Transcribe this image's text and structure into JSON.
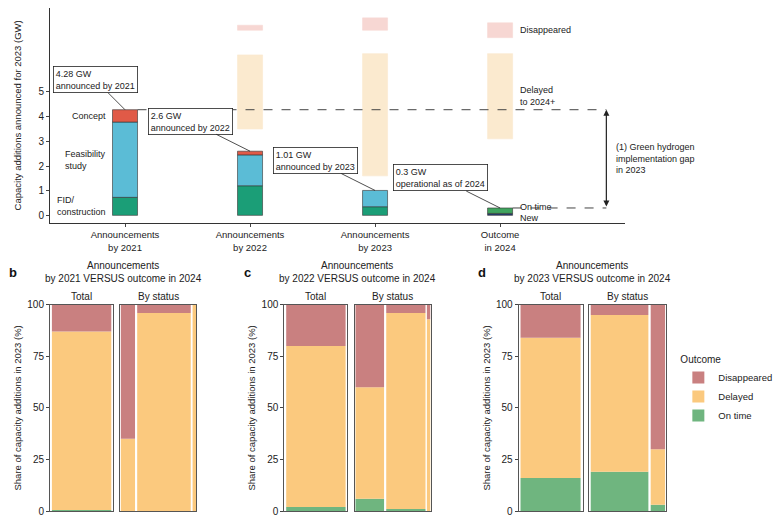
{
  "chart_data": [
    {
      "type": "bar",
      "stacked": true,
      "ylabel": "Capacity additions announced for 2023 (GW)",
      "categories": [
        "Announcements by 2021",
        "Announcements by 2022",
        "Announcements by 2023",
        "Outcome in 2024"
      ],
      "ylim": [
        -0.3,
        8.4
      ],
      "yticks": [
        0,
        1,
        2,
        3,
        4,
        5
      ],
      "series": [
        {
          "name": "New",
          "color": "#253b6e",
          "values": [
            null,
            null,
            null,
            0.08
          ]
        },
        {
          "name": "FID/ construction",
          "color": "#1b9e77",
          "values": [
            0.73,
            1.2,
            0.35,
            null
          ]
        },
        {
          "name": "On time",
          "color": "#3fa45e",
          "values": [
            null,
            null,
            null,
            0.22
          ]
        },
        {
          "name": "Feasibility study",
          "color": "#5bbcd6",
          "values": [
            3.05,
            1.25,
            0.66,
            null
          ]
        },
        {
          "name": "Concept",
          "color": "#e05a47",
          "values": [
            0.5,
            0.15,
            null,
            null
          ]
        },
        {
          "name": "Delayed to 2024+",
          "color": "#f9d9a8",
          "values": [
            null,
            3.0,
            4.95,
            3.45
          ],
          "base": [
            null,
            3.5,
            1.6,
            3.1
          ]
        },
        {
          "name": "Disappeared",
          "color": "#f2b8b0",
          "values": [
            null,
            0.2,
            0.5,
            0.6
          ],
          "base": [
            null,
            7.5,
            7.5,
            7.2
          ]
        }
      ],
      "callouts": [
        [
          "4.28 GW",
          "announced by 2021"
        ],
        [
          "2.6 GW",
          "announced by 2022"
        ],
        [
          "1.01 GW",
          "announced by 2023"
        ],
        [
          "0.3 GW",
          "operational as of 2024"
        ]
      ],
      "gap": {
        "from": 0.3,
        "to": 4.28,
        "lines": [
          "(1) Green hydrogen",
          "implementation gap",
          "in 2023"
        ]
      }
    },
    {
      "type": "bar",
      "stacked": true,
      "label": "b",
      "title_lines": [
        "Announcements",
        "by 2021 VERSUS outcome in 2024"
      ],
      "ylabel": "Share of capacity additions in 2023 (%)",
      "ylim": [
        0,
        100
      ],
      "yticks": [
        0,
        25,
        50,
        75,
        100
      ],
      "tick_labels": "y",
      "groups": [
        {
          "title": "Total",
          "widths": [
            100
          ],
          "series": [
            {
              "name": "On time",
              "color": "#6fb57f",
              "values": [
                0.5
              ]
            },
            {
              "name": "Delayed",
              "color": "#fbc97e",
              "values": [
                86.5
              ]
            },
            {
              "name": "Disappeared",
              "color": "#c98080",
              "values": [
                13
              ]
            }
          ]
        },
        {
          "title": "By status",
          "widths": [
            20,
            75,
            5
          ],
          "series": [
            {
              "name": "On time",
              "color": "#6fb57f",
              "values": [
                0,
                0,
                0
              ]
            },
            {
              "name": "Delayed",
              "color": "#fbc97e",
              "values": [
                35,
                96,
                100
              ]
            },
            {
              "name": "Disappeared",
              "color": "#c98080",
              "values": [
                65,
                4,
                0
              ]
            }
          ]
        }
      ]
    },
    {
      "type": "bar",
      "stacked": true,
      "label": "c",
      "title_lines": [
        "Announcements",
        "by 2022 VERSUS outcome in 2024"
      ],
      "ylabel": "Share of capacity additions in 2023 (%)",
      "ylim": [
        0,
        100
      ],
      "yticks": [
        0,
        25,
        50,
        75,
        100
      ],
      "tick_labels": "y",
      "groups": [
        {
          "title": "Total",
          "widths": [
            100
          ],
          "series": [
            {
              "name": "On time",
              "color": "#6fb57f",
              "values": [
                2
              ]
            },
            {
              "name": "Delayed",
              "color": "#fbc97e",
              "values": [
                78
              ]
            },
            {
              "name": "Disappeared",
              "color": "#c98080",
              "values": [
                20
              ]
            }
          ]
        },
        {
          "title": "By status",
          "widths": [
            40,
            55,
            5
          ],
          "series": [
            {
              "name": "On time",
              "color": "#6fb57f",
              "values": [
                6,
                1,
                0
              ]
            },
            {
              "name": "Delayed",
              "color": "#fbc97e",
              "values": [
                54,
                95,
                93
              ]
            },
            {
              "name": "Disappeared",
              "color": "#c98080",
              "values": [
                40,
                4,
                7
              ]
            }
          ]
        }
      ]
    },
    {
      "type": "bar",
      "stacked": true,
      "label": "d",
      "title_lines": [
        "Announcements",
        "by 2023 VERSUS outcome in 2024"
      ],
      "ylabel": "Share of capacity additions in 2023 (%)",
      "ylim": [
        0,
        100
      ],
      "yticks": [
        0,
        25,
        50,
        75,
        100
      ],
      "tick_labels": "y",
      "legend": "right",
      "legend_title": "Outcome",
      "groups": [
        {
          "title": "Total",
          "widths": [
            100
          ],
          "series": [
            {
              "name": "On time",
              "color": "#6fb57f",
              "values": [
                16
              ]
            },
            {
              "name": "Delayed",
              "color": "#fbc97e",
              "values": [
                68
              ]
            },
            {
              "name": "Disappeared",
              "color": "#c98080",
              "values": [
                16
              ]
            }
          ]
        },
        {
          "title": "By status",
          "widths": [
            80,
            20
          ],
          "series": [
            {
              "name": "On time",
              "color": "#6fb57f",
              "values": [
                19,
                3
              ]
            },
            {
              "name": "Delayed",
              "color": "#fbc97e",
              "values": [
                76,
                27
              ]
            },
            {
              "name": "Disappeared",
              "color": "#c98080",
              "values": [
                5,
                70
              ]
            }
          ]
        }
      ]
    }
  ]
}
